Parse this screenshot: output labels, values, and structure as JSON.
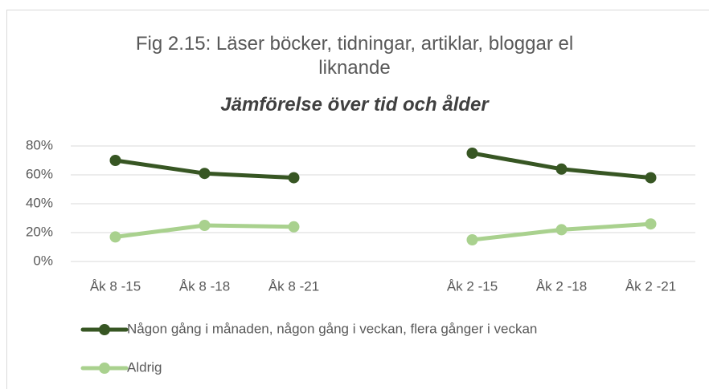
{
  "chart_data": {
    "type": "line",
    "title": "Fig 2.15: Läser böcker, tidningar, artiklar, bloggar el liknande",
    "subtitle": "Jämförelse över tid och ålder",
    "categories": [
      "Åk 8 -15",
      "Åk 8 -18",
      "Åk 8 -21",
      null,
      "Åk 2 -15",
      "Åk 2 -18",
      "Åk 2 -21"
    ],
    "series": [
      {
        "name": "Någon gång i månaden, någon gång i veckan, flera gånger i veckan",
        "color": "#375623",
        "values": [
          70,
          61,
          58,
          null,
          75,
          64,
          58
        ]
      },
      {
        "name": "Aldrig",
        "color": "#a9d18e",
        "values": [
          17,
          25,
          24,
          null,
          15,
          22,
          26
        ]
      }
    ],
    "ylim": [
      0,
      80
    ],
    "yticks": [
      {
        "value": 0,
        "label": "0%"
      },
      {
        "value": 20,
        "label": "20%"
      },
      {
        "value": 40,
        "label": "40%"
      },
      {
        "value": 60,
        "label": "60%"
      },
      {
        "value": 80,
        "label": "80%"
      }
    ],
    "grid": true,
    "legend": "bottom"
  }
}
